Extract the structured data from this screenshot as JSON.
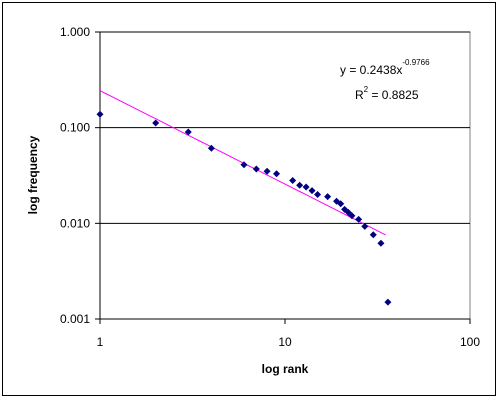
{
  "chart_data": {
    "type": "scatter",
    "title": "",
    "xlabel": "log rank",
    "ylabel": "log frequency",
    "x_scale": "log",
    "y_scale": "log",
    "xlim": [
      1,
      100
    ],
    "ylim": [
      0.001,
      1
    ],
    "x_ticks": [
      "1",
      "10",
      "100"
    ],
    "y_ticks": [
      "0.001",
      "0.010",
      "0.100",
      "1.000"
    ],
    "grid": "horizontal major gridlines",
    "legend": "none",
    "colors": {
      "points": "#000080",
      "trendline": "#ff00ff",
      "grid": "#000000"
    },
    "series": [
      {
        "x": [
          1,
          2,
          3,
          4,
          6,
          7,
          8,
          9,
          11,
          12,
          13,
          14,
          15,
          17,
          19,
          20,
          21,
          22,
          23,
          25,
          27,
          30,
          33,
          36
        ],
        "y": [
          0.138,
          0.112,
          0.09,
          0.061,
          0.041,
          0.037,
          0.035,
          0.033,
          0.028,
          0.025,
          0.024,
          0.022,
          0.02,
          0.019,
          0.017,
          0.016,
          0.014,
          0.013,
          0.012,
          0.011,
          0.0093,
          0.0076,
          0.0062,
          0.0015
        ]
      }
    ],
    "trendline": {
      "type": "power",
      "coefficient": 0.2438,
      "exponent": -0.9766,
      "x_range": [
        1,
        35
      ],
      "equation_main": "y = 0.2438x",
      "equation_exp": "-0.9766",
      "r2_main": "R",
      "r2_sup": "2",
      "r2_value": " = 0.8825"
    }
  }
}
